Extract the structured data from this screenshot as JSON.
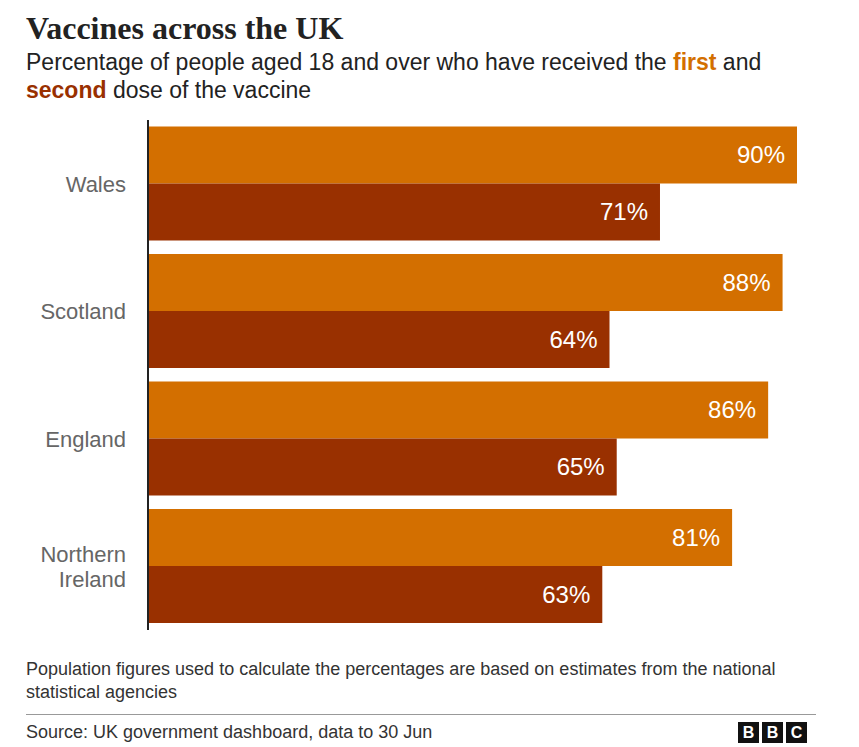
{
  "chart_data": {
    "type": "bar",
    "title": "Vaccines across the UK",
    "subtitle": "Percentage of people aged 18 and over who have received the first and second dose of the vaccine",
    "categories": [
      "Wales",
      "Scotland",
      "England",
      "Northern Ireland"
    ],
    "series": [
      {
        "name": "first",
        "color": "#d36f00",
        "values": [
          90,
          88,
          86,
          81
        ],
        "value_labels": [
          "90%",
          "88%",
          "86%",
          "81%"
        ]
      },
      {
        "name": "second",
        "color": "#993000",
        "values": [
          71,
          64,
          65,
          63
        ],
        "value_labels": [
          "71%",
          "64%",
          "65%",
          "63%"
        ]
      }
    ],
    "xlim": [
      0,
      90
    ],
    "orientation": "horizontal",
    "data_labels": true,
    "tick_labels": "y",
    "grid": false,
    "footnote": "Population figures used to calculate the percentages are based on estimates from the national statistical agencies",
    "source": "Source: UK government dashboard, data to 30 Jun",
    "logo": "BBC"
  }
}
